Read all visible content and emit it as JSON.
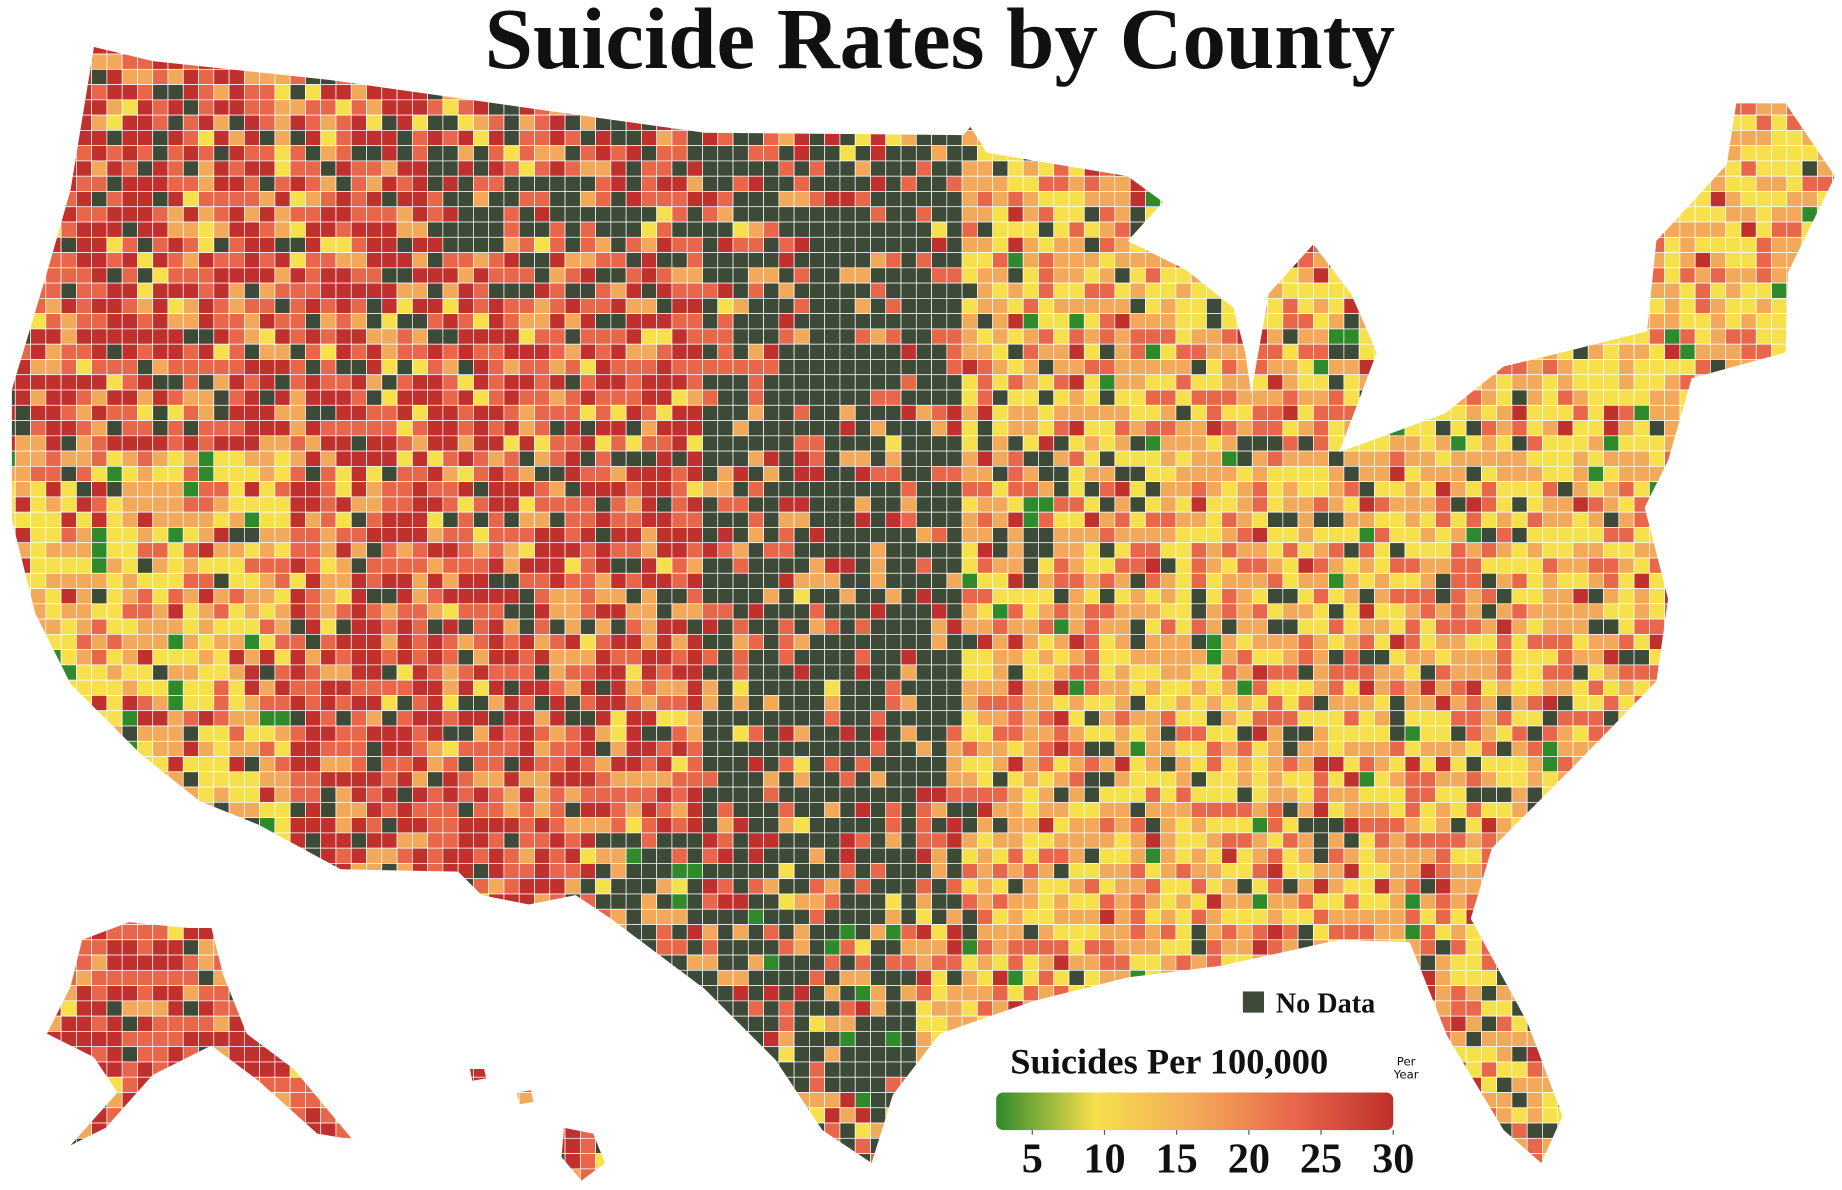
{
  "title": "Suicide Rates by County",
  "legend": {
    "title": "Suicides Per 100,000",
    "unit_note": [
      "Per",
      "Year"
    ],
    "no_data_label": "No Data",
    "no_data_color": "#3e4a38",
    "colorscale": [
      "#2f8a2c",
      "#f6e04c",
      "#f3a95a",
      "#e8664a",
      "#c0302d"
    ],
    "range": [
      2.5,
      30
    ],
    "ticks": [
      5,
      10,
      15,
      20,
      25,
      30
    ]
  }
}
